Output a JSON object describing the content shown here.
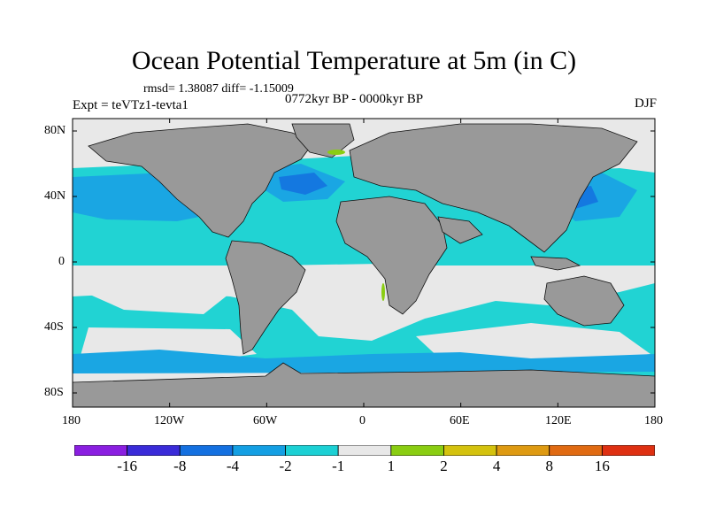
{
  "title": "Ocean Potential Temperature at 5m (in C)",
  "stats": "rmsd= 1.38087 diff= -1.15009",
  "experiment": "Expt = teVTz1-tevta1",
  "period": "0772kyr BP - 0000kyr BP",
  "season": "DJF",
  "lat_ticks": [
    "80N",
    "40N",
    "0",
    "40S",
    "80S"
  ],
  "lon_ticks": [
    "180",
    "120W",
    "60W",
    "0",
    "60E",
    "120E",
    "180"
  ],
  "colors": {
    "land": "#999999",
    "neutral": "#e8e8e8",
    "cyan": "#21d3d3",
    "light_blue": "#1aa6e3",
    "mid_blue": "#1478e0"
  },
  "colorbar": {
    "labels": [
      "-16",
      "-8",
      "-4",
      "-2",
      "-1",
      "1",
      "2",
      "4",
      "8",
      "16"
    ],
    "colors": [
      "#8a1fe0",
      "#3a2bd8",
      "#1470e0",
      "#149fe3",
      "#1cd0d4",
      "#e8e8e8",
      "#8acd12",
      "#d4c20e",
      "#de9a12",
      "#e06a12",
      "#de3012"
    ]
  }
}
